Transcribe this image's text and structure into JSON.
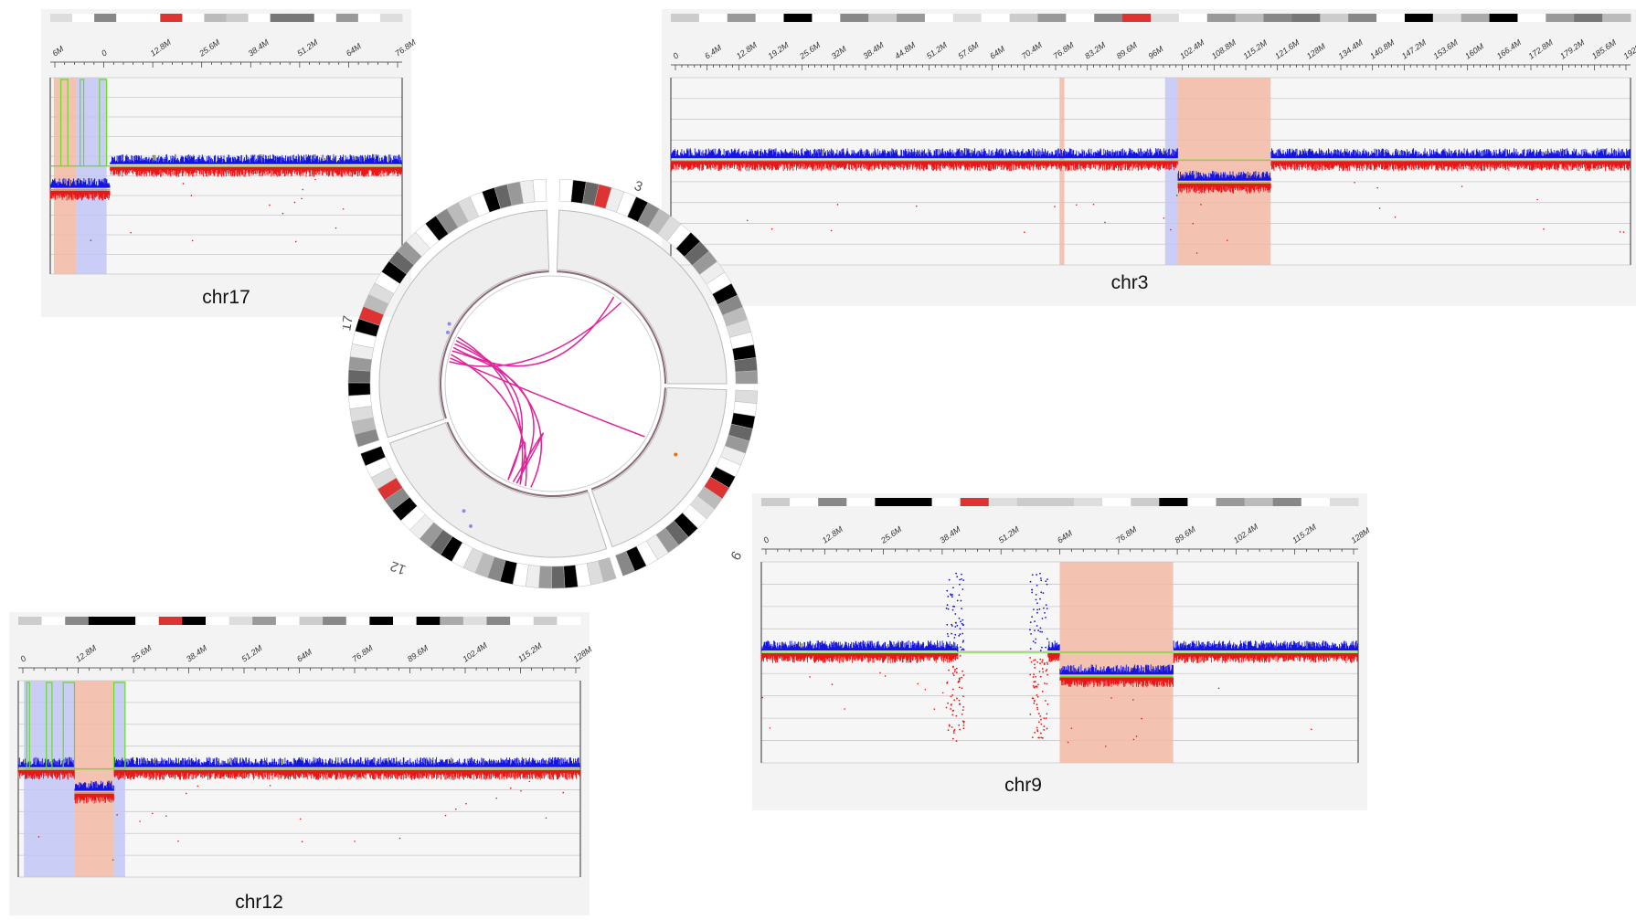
{
  "panels": [
    {
      "id": "chr17",
      "label": "chr17",
      "ticks": [
        "6M",
        "0",
        "12.8M",
        "25.6M",
        "38.4M",
        "51.2M",
        "64M",
        "76.8M"
      ],
      "ideogram": [
        "#ddd",
        "#fff",
        "#888",
        "#fff",
        "#fff",
        "#d33",
        "#fff",
        "#bbb",
        "#ccc",
        "#fff",
        "#777",
        "#777",
        "#fff",
        "#999",
        "#fff",
        "#ddd"
      ]
    },
    {
      "id": "chr3",
      "label": "chr3",
      "ticks": [
        "0",
        "6.4M",
        "12.8M",
        "19.2M",
        "25.6M",
        "32M",
        "38.4M",
        "44.8M",
        "51.2M",
        "57.6M",
        "64M",
        "70.4M",
        "76.8M",
        "83.2M",
        "89.6M",
        "96M",
        "102.4M",
        "108.8M",
        "115.2M",
        "121.6M",
        "128M",
        "134.4M",
        "140.8M",
        "147.2M",
        "153.6M",
        "160M",
        "166.4M",
        "172.8M",
        "179.2M",
        "185.6M",
        "192M"
      ],
      "ideogram": [
        "#ccc",
        "#fff",
        "#999",
        "#fff",
        "#000",
        "#fff",
        "#888",
        "#ccc",
        "#999",
        "#fff",
        "#ddd",
        "#fff",
        "#ccc",
        "#999",
        "#fff",
        "#888",
        "#d33",
        "#ddd",
        "#fff",
        "#999",
        "#bbb",
        "#888",
        "#777",
        "#ccc",
        "#888",
        "#fff",
        "#000",
        "#ddd",
        "#aaa",
        "#000",
        "#fff",
        "#999",
        "#777",
        "#bbb"
      ]
    },
    {
      "id": "chr12",
      "label": "chr12",
      "ticks": [
        "0",
        "12.8M",
        "25.6M",
        "38.4M",
        "51.2M",
        "64M",
        "76.8M",
        "89.6M",
        "102.4M",
        "115.2M",
        "128M"
      ],
      "ideogram": [
        "#ccc",
        "#fff",
        "#888",
        "#000",
        "#000",
        "#fff",
        "#d33",
        "#000",
        "#fff",
        "#ddd",
        "#999",
        "#fff",
        "#ccc",
        "#888",
        "#fff",
        "#000",
        "#fff",
        "#000",
        "#aaa",
        "#ddd",
        "#888",
        "#fff",
        "#ccc",
        "#fff"
      ]
    },
    {
      "id": "chr9",
      "label": "chr9",
      "ticks": [
        "0",
        "12.8M",
        "25.6M",
        "38.4M",
        "51.2M",
        "64M",
        "76.8M",
        "89.6M",
        "102.4M",
        "115.2M",
        "128M"
      ],
      "ideogram": [
        "#ccc",
        "#fff",
        "#888",
        "#fff",
        "#000",
        "#000",
        "#fff",
        "#d33",
        "#ddd",
        "#ccc",
        "#ccc",
        "#ddd",
        "#fff",
        "#ccc",
        "#000",
        "#fff",
        "#999",
        "#bbb",
        "#888",
        "#fff",
        "#ddd"
      ]
    }
  ],
  "circos": {
    "labels": [
      "3",
      "9",
      "12",
      "17"
    ]
  },
  "colors": {
    "gain": "#1515e0",
    "loss": "#e81818",
    "baseline": "#66dd22",
    "loh_region": "#f2b9a4",
    "del_region": "#c2c6f5",
    "link": "#e0239a"
  }
}
